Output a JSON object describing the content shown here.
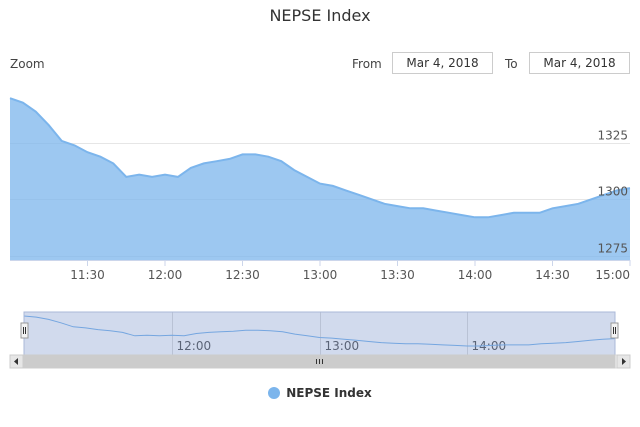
{
  "title": "NEPSE Index",
  "range_selector": {
    "zoom_label": "Zoom",
    "from_label": "From",
    "from_value": "Mar 4, 2018",
    "to_label": "To",
    "to_value": "Mar 4, 2018"
  },
  "colors": {
    "series": "#7cb5ec",
    "grid": "#e6e6e6",
    "navigator_mask": "rgba(102,133,194,0.3)"
  },
  "legend": {
    "items": [
      "NEPSE Index"
    ]
  },
  "chart_data": {
    "type": "area",
    "title": "NEPSE Index",
    "xlabel": "",
    "ylabel": "",
    "x_ticks": [
      "11:30",
      "12:00",
      "12:30",
      "13:00",
      "13:30",
      "14:00",
      "14:30",
      "15:00"
    ],
    "y_ticks": [
      1275,
      1300,
      1325
    ],
    "x_range": [
      "11:00",
      "15:00"
    ],
    "ylim": [
      1273,
      1346
    ],
    "grid": true,
    "legend": "bottom-center",
    "navigator_ticks": [
      "12:00",
      "13:00",
      "14:00"
    ],
    "series": [
      {
        "name": "NEPSE Index",
        "x": [
          "11:00",
          "11:05",
          "11:10",
          "11:15",
          "11:20",
          "11:25",
          "11:30",
          "11:35",
          "11:40",
          "11:45",
          "11:50",
          "11:55",
          "12:00",
          "12:05",
          "12:10",
          "12:15",
          "12:20",
          "12:25",
          "12:30",
          "12:35",
          "12:40",
          "12:45",
          "12:50",
          "12:55",
          "13:00",
          "13:05",
          "13:10",
          "13:15",
          "13:20",
          "13:25",
          "13:30",
          "13:35",
          "13:40",
          "13:45",
          "13:50",
          "13:55",
          "14:00",
          "14:05",
          "14:10",
          "14:15",
          "14:20",
          "14:25",
          "14:30",
          "14:35",
          "14:40",
          "14:45",
          "14:50",
          "14:55",
          "15:00"
        ],
        "values": [
          1345,
          1343,
          1339,
          1333,
          1326,
          1324,
          1321,
          1319,
          1316,
          1310,
          1311,
          1310,
          1311,
          1310,
          1314,
          1316,
          1317,
          1318,
          1320,
          1320,
          1319,
          1317,
          1313,
          1310,
          1307,
          1306,
          1304,
          1302,
          1300,
          1298,
          1297,
          1296,
          1296,
          1295,
          1294,
          1293,
          1292,
          1292,
          1293,
          1294,
          1294,
          1294,
          1296,
          1297,
          1298,
          1300,
          1302,
          1304,
          1305
        ]
      }
    ]
  }
}
